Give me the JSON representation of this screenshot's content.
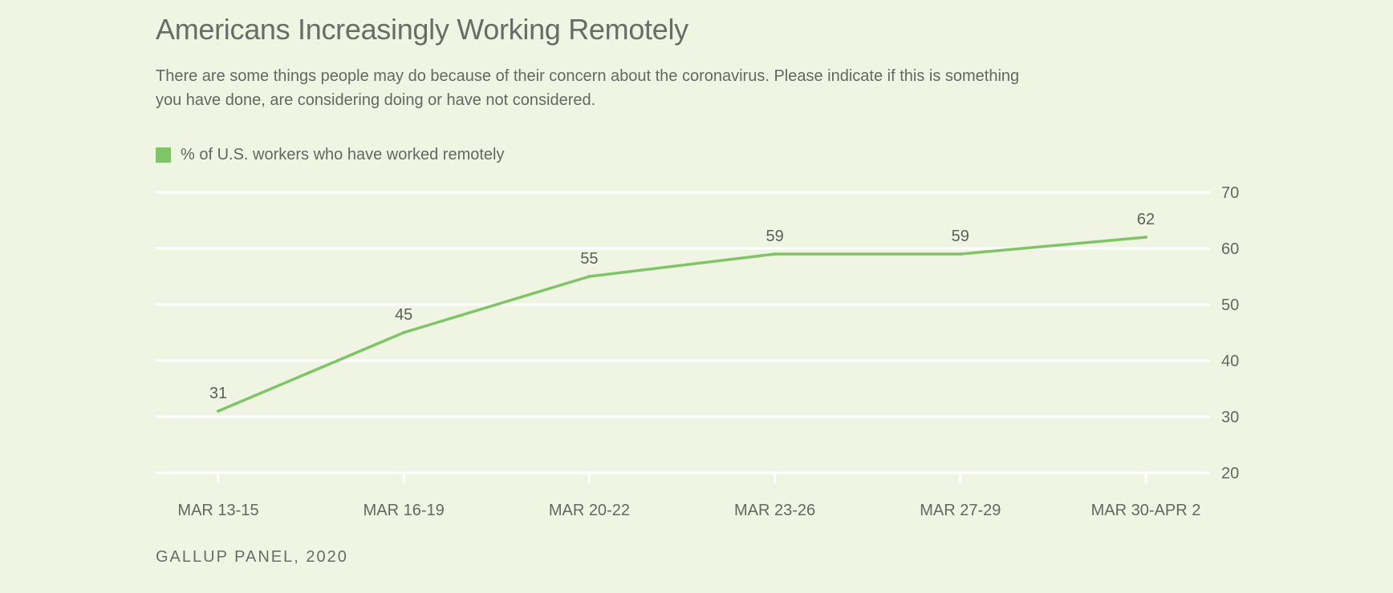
{
  "chart_data": {
    "type": "line",
    "title": "Americans Increasingly Working Remotely",
    "subtitle": "There are some things people may do because of their concern about the coronavirus. Please indicate if this is something you have done, are considering doing or have not considered.",
    "categories": [
      "MAR 13-15",
      "MAR 16-19",
      "MAR 20-22",
      "MAR 23-26",
      "MAR 27-29",
      "MAR 30-APR 2"
    ],
    "series": [
      {
        "name": "% of U.S. workers who have worked remotely",
        "values": [
          31,
          45,
          55,
          59,
          59,
          62
        ],
        "color": "#80c468"
      }
    ],
    "ylim": [
      20,
      70
    ],
    "yticks": [
      20,
      30,
      40,
      50,
      60,
      70
    ],
    "grid": true,
    "legend": "top-left",
    "source": "GALLUP PANEL, 2020"
  }
}
